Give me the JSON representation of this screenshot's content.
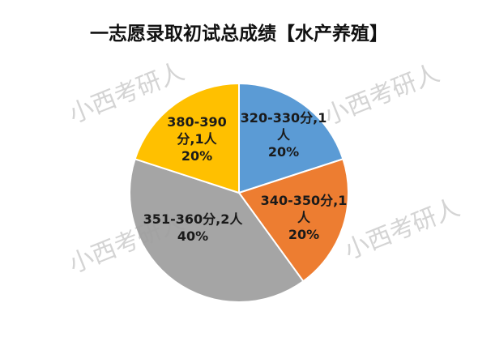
{
  "chart_data": {
    "type": "pie",
    "title": "一志愿录取初试总成绩【水产养殖】",
    "categories": [
      "320-330分,1人",
      "340-350分,1人",
      "351-360分,2人",
      "380-390分,1人"
    ],
    "values": [
      20,
      20,
      40,
      20
    ],
    "value_labels": [
      "20%",
      "20%",
      "40%",
      "20%"
    ],
    "colors": [
      "#5b9bd5",
      "#ed7d31",
      "#a5a5a5",
      "#ffc000"
    ],
    "watermark": "小西考研人"
  }
}
